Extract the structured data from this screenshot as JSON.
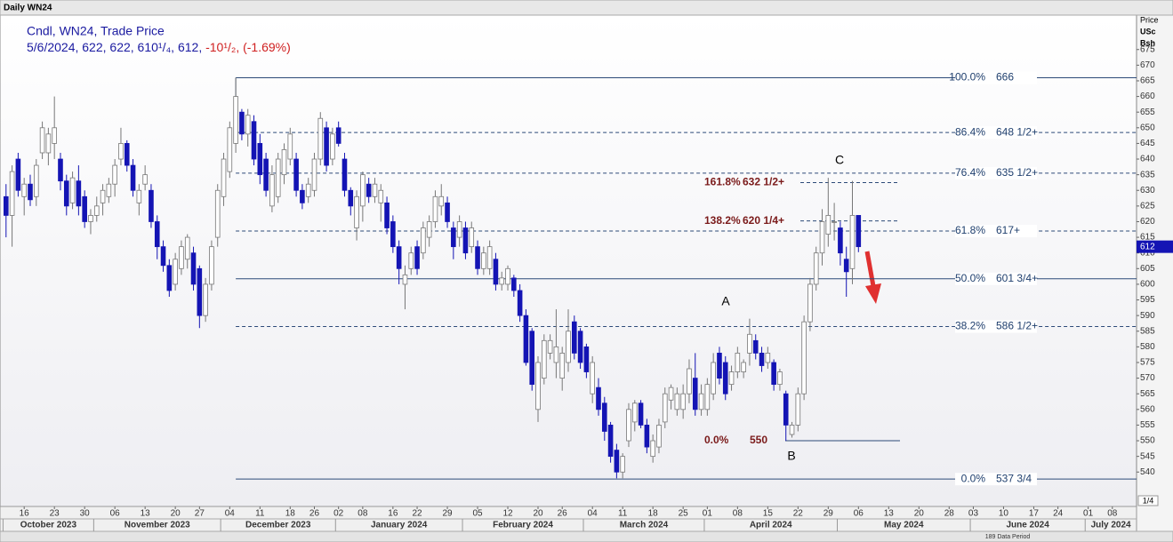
{
  "header": "Daily WN24",
  "chart_data": {
    "type": "candlestick",
    "legend_title": "Cndl, WN24, Trade Price",
    "legend_values": "5/6/2024, 622, 622, 610¹/₄, 612, ",
    "legend_change": "-10¹/₂, (-1.69%)",
    "axis_label": [
      "Price",
      "USc",
      "Bsh"
    ],
    "up_color": "#ffffff",
    "down_color": "#1414b4",
    "ohlc": [
      [
        628,
        632,
        615,
        622
      ],
      [
        622,
        638,
        612,
        636
      ],
      [
        640,
        642,
        628,
        630
      ],
      [
        628,
        634,
        622,
        632
      ],
      [
        632,
        635,
        625,
        627
      ],
      [
        628,
        640,
        625,
        638
      ],
      [
        642,
        652,
        640,
        650
      ],
      [
        642,
        650,
        638,
        648
      ],
      [
        645,
        660,
        640,
        650
      ],
      [
        640,
        642,
        630,
        633
      ],
      [
        633,
        635,
        622,
        625
      ],
      [
        626,
        636,
        624,
        634
      ],
      [
        633,
        638,
        622,
        625
      ],
      [
        628,
        630,
        618,
        620
      ],
      [
        620,
        624,
        616,
        622
      ],
      [
        622,
        628,
        620,
        625
      ],
      [
        626,
        632,
        622,
        630
      ],
      [
        628,
        634,
        626,
        632
      ],
      [
        632,
        640,
        628,
        638
      ],
      [
        640,
        650,
        638,
        645
      ],
      [
        645,
        646,
        636,
        638
      ],
      [
        638,
        640,
        628,
        630
      ],
      [
        626,
        632,
        622,
        630
      ],
      [
        632,
        638,
        630,
        635
      ],
      [
        630,
        632,
        618,
        620
      ],
      [
        620,
        622,
        608,
        612
      ],
      [
        612,
        614,
        604,
        606
      ],
      [
        606,
        608,
        596,
        598
      ],
      [
        600,
        610,
        598,
        608
      ],
      [
        605,
        614,
        603,
        612
      ],
      [
        608,
        616,
        605,
        615
      ],
      [
        610,
        612,
        598,
        600
      ],
      [
        605,
        606,
        586,
        590
      ],
      [
        590,
        602,
        588,
        600
      ],
      [
        600,
        614,
        598,
        612
      ],
      [
        615,
        632,
        612,
        630
      ],
      [
        628,
        642,
        625,
        640
      ],
      [
        636,
        652,
        634,
        650
      ],
      [
        645,
        666,
        642,
        660
      ],
      [
        655,
        656,
        646,
        648
      ],
      [
        648,
        656,
        644,
        654
      ],
      [
        652,
        654,
        638,
        640
      ],
      [
        645,
        648,
        632,
        635
      ],
      [
        640,
        642,
        628,
        630
      ],
      [
        625,
        638,
        623,
        635
      ],
      [
        628,
        642,
        626,
        640
      ],
      [
        635,
        645,
        632,
        643
      ],
      [
        640,
        650,
        638,
        648
      ],
      [
        640,
        642,
        628,
        630
      ],
      [
        630,
        632,
        624,
        626
      ],
      [
        628,
        634,
        626,
        632
      ],
      [
        630,
        642,
        628,
        640
      ],
      [
        640,
        655,
        638,
        653
      ],
      [
        650,
        652,
        636,
        638
      ],
      [
        640,
        650,
        638,
        648
      ],
      [
        650,
        652,
        644,
        645
      ],
      [
        640,
        642,
        628,
        630
      ],
      [
        630,
        631,
        622,
        625
      ],
      [
        618,
        630,
        614,
        628
      ],
      [
        625,
        636,
        620,
        635
      ],
      [
        632,
        634,
        626,
        628
      ],
      [
        628,
        634,
        626,
        632
      ],
      [
        626,
        632,
        620,
        630
      ],
      [
        626,
        628,
        616,
        618
      ],
      [
        620,
        622,
        610,
        612
      ],
      [
        612,
        614,
        600,
        605
      ],
      [
        600,
        606,
        592,
        603
      ],
      [
        605,
        612,
        603,
        610
      ],
      [
        612,
        614,
        603,
        605
      ],
      [
        610,
        620,
        608,
        618
      ],
      [
        615,
        622,
        612,
        620
      ],
      [
        620,
        630,
        618,
        628
      ],
      [
        625,
        632,
        622,
        628
      ],
      [
        626,
        628,
        618,
        620
      ],
      [
        618,
        620,
        608,
        612
      ],
      [
        615,
        622,
        612,
        620
      ],
      [
        618,
        620,
        608,
        610
      ],
      [
        612,
        620,
        610,
        618
      ],
      [
        612,
        614,
        603,
        605
      ],
      [
        605,
        612,
        603,
        610
      ],
      [
        605,
        614,
        603,
        612
      ],
      [
        608,
        610,
        598,
        600
      ],
      [
        600,
        604,
        598,
        602
      ],
      [
        600,
        606,
        598,
        605
      ],
      [
        602,
        603,
        596,
        598
      ],
      [
        598,
        600,
        588,
        590
      ],
      [
        590,
        592,
        574,
        575
      ],
      [
        585,
        586,
        566,
        568
      ],
      [
        560,
        577,
        556,
        575
      ],
      [
        570,
        584,
        568,
        582
      ],
      [
        578,
        584,
        576,
        582
      ],
      [
        575,
        592,
        570,
        580
      ],
      [
        570,
        580,
        566,
        578
      ],
      [
        575,
        592,
        572,
        585
      ],
      [
        588,
        590,
        576,
        578
      ],
      [
        585,
        586,
        573,
        575
      ],
      [
        580,
        581,
        570,
        572
      ],
      [
        565,
        577,
        562,
        575
      ],
      [
        567,
        570,
        558,
        560
      ],
      [
        562,
        564,
        550,
        553
      ],
      [
        555,
        556,
        543,
        545
      ],
      [
        547,
        549,
        538,
        540
      ],
      [
        540,
        546,
        538,
        545
      ],
      [
        550,
        562,
        548,
        560
      ],
      [
        556,
        563,
        553,
        562
      ],
      [
        562,
        563,
        554,
        555
      ],
      [
        555,
        557,
        546,
        548
      ],
      [
        545,
        552,
        543,
        550
      ],
      [
        548,
        557,
        546,
        555
      ],
      [
        556,
        567,
        554,
        565
      ],
      [
        563,
        568,
        560,
        567
      ],
      [
        560,
        567,
        558,
        565
      ],
      [
        560,
        568,
        557,
        565
      ],
      [
        565,
        576,
        562,
        573
      ],
      [
        570,
        578,
        558,
        560
      ],
      [
        560,
        568,
        558,
        565
      ],
      [
        560,
        570,
        558,
        568
      ],
      [
        565,
        578,
        563,
        575
      ],
      [
        578,
        580,
        568,
        570
      ],
      [
        575,
        577,
        563,
        565
      ],
      [
        568,
        574,
        566,
        572
      ],
      [
        572,
        580,
        570,
        578
      ],
      [
        572,
        576,
        570,
        575
      ],
      [
        578,
        589,
        574,
        584
      ],
      [
        582,
        584,
        576,
        578
      ],
      [
        578,
        580,
        572,
        574
      ],
      [
        575,
        580,
        573,
        578
      ],
      [
        575,
        576,
        566,
        568
      ],
      [
        568,
        573,
        566,
        572
      ],
      [
        565,
        566,
        550,
        555
      ],
      [
        552,
        556,
        551,
        555
      ],
      [
        555,
        567,
        553,
        565
      ],
      [
        565,
        590,
        563,
        588
      ],
      [
        588,
        602,
        585,
        600
      ],
      [
        600,
        612,
        598,
        610
      ],
      [
        610,
        624,
        606,
        620
      ],
      [
        616,
        634,
        612,
        622
      ],
      [
        620,
        626,
        614,
        620
      ],
      [
        618,
        620,
        606,
        610
      ],
      [
        608,
        612,
        596,
        604
      ],
      [
        605,
        633,
        600,
        622
      ],
      [
        622,
        622,
        610.25,
        612
      ]
    ],
    "xlim": [
      -1,
      187
    ],
    "xticks": [
      {
        "value": 3,
        "label": "16"
      },
      {
        "value": 8,
        "label": "23"
      },
      {
        "value": 13,
        "label": "30"
      },
      {
        "value": 18,
        "label": "06"
      },
      {
        "value": 23,
        "label": "13"
      },
      {
        "value": 28,
        "label": "20"
      },
      {
        "value": 32,
        "label": "27"
      },
      {
        "value": 37,
        "label": "04"
      },
      {
        "value": 42,
        "label": "11"
      },
      {
        "value": 47,
        "label": "18"
      },
      {
        "value": 51,
        "label": "26"
      },
      {
        "value": 55,
        "label": "02"
      },
      {
        "value": 59,
        "label": "08"
      },
      {
        "value": 64,
        "label": "16"
      },
      {
        "value": 68,
        "label": "22"
      },
      {
        "value": 73,
        "label": "29"
      },
      {
        "value": 78,
        "label": "05"
      },
      {
        "value": 83,
        "label": "12"
      },
      {
        "value": 88,
        "label": "20"
      },
      {
        "value": 92,
        "label": "26"
      },
      {
        "value": 97,
        "label": "04"
      },
      {
        "value": 102,
        "label": "11"
      },
      {
        "value": 107,
        "label": "18"
      },
      {
        "value": 112,
        "label": "25"
      },
      {
        "value": 116,
        "label": "01"
      },
      {
        "value": 121,
        "label": "08"
      },
      {
        "value": 126,
        "label": "15"
      },
      {
        "value": 131,
        "label": "22"
      },
      {
        "value": 136,
        "label": "29"
      },
      {
        "value": 141,
        "label": "06"
      },
      {
        "value": 146,
        "label": "13"
      },
      {
        "value": 151,
        "label": "20"
      },
      {
        "value": 156,
        "label": "28"
      },
      {
        "value": 160,
        "label": "03"
      },
      {
        "value": 165,
        "label": "10"
      },
      {
        "value": 170,
        "label": "17"
      },
      {
        "value": 174,
        "label": "24"
      },
      {
        "value": 179,
        "label": "01"
      },
      {
        "value": 183,
        "label": "08"
      }
    ],
    "months": [
      {
        "value": 0,
        "label": "October 2023"
      },
      {
        "value": 15,
        "label": "November 2023"
      },
      {
        "value": 36,
        "label": "December 2023"
      },
      {
        "value": 55,
        "label": "January 2024"
      },
      {
        "value": 76,
        "label": "February 2024"
      },
      {
        "value": 96,
        "label": "March 2024"
      },
      {
        "value": 116,
        "label": "April 2024"
      },
      {
        "value": 138,
        "label": "May 2024"
      },
      {
        "value": 160,
        "label": "June 2024"
      },
      {
        "value": 179,
        "label": "July 2024"
      }
    ],
    "ylim": [
      529,
      686
    ],
    "yticks": [
      540,
      545,
      550,
      555,
      560,
      565,
      570,
      575,
      580,
      585,
      590,
      595,
      600,
      605,
      610,
      615,
      620,
      625,
      630,
      635,
      640,
      645,
      650,
      655,
      660,
      665,
      670,
      675
    ],
    "price_tag": 612,
    "fib": [
      {
        "pct": "100.0%",
        "label": "666",
        "value": 666,
        "dashed": false
      },
      {
        "pct": "86.4%",
        "label": "648 1/2+",
        "value": 648.5,
        "dashed": true
      },
      {
        "pct": "76.4%",
        "label": "635 1/2+",
        "value": 635.5,
        "dashed": true
      },
      {
        "pct": "61.8%",
        "label": "617+",
        "value": 617,
        "dashed": true
      },
      {
        "pct": "50.0%",
        "label": "601 3/4+",
        "value": 601.75,
        "dashed": false
      },
      {
        "pct": "38.2%",
        "label": "586 1/2+",
        "value": 586.5,
        "dashed": true
      },
      {
        "pct": "0.0%",
        "label": "537 3/4",
        "value": 537.75,
        "dashed": false
      }
    ],
    "extension": [
      {
        "pct": "161.8%",
        "label": "632 1/2+",
        "value": 632.5,
        "dashed": true
      },
      {
        "pct": "138.2%",
        "label": "620 1/4+",
        "value": 620.25,
        "dashed": true
      },
      {
        "pct": "0.0%",
        "label": "550",
        "value": 550,
        "dashed": false
      }
    ],
    "waves": [
      "A",
      "B",
      "C"
    ],
    "data_period": "189 Data Period",
    "page": "1/4"
  }
}
